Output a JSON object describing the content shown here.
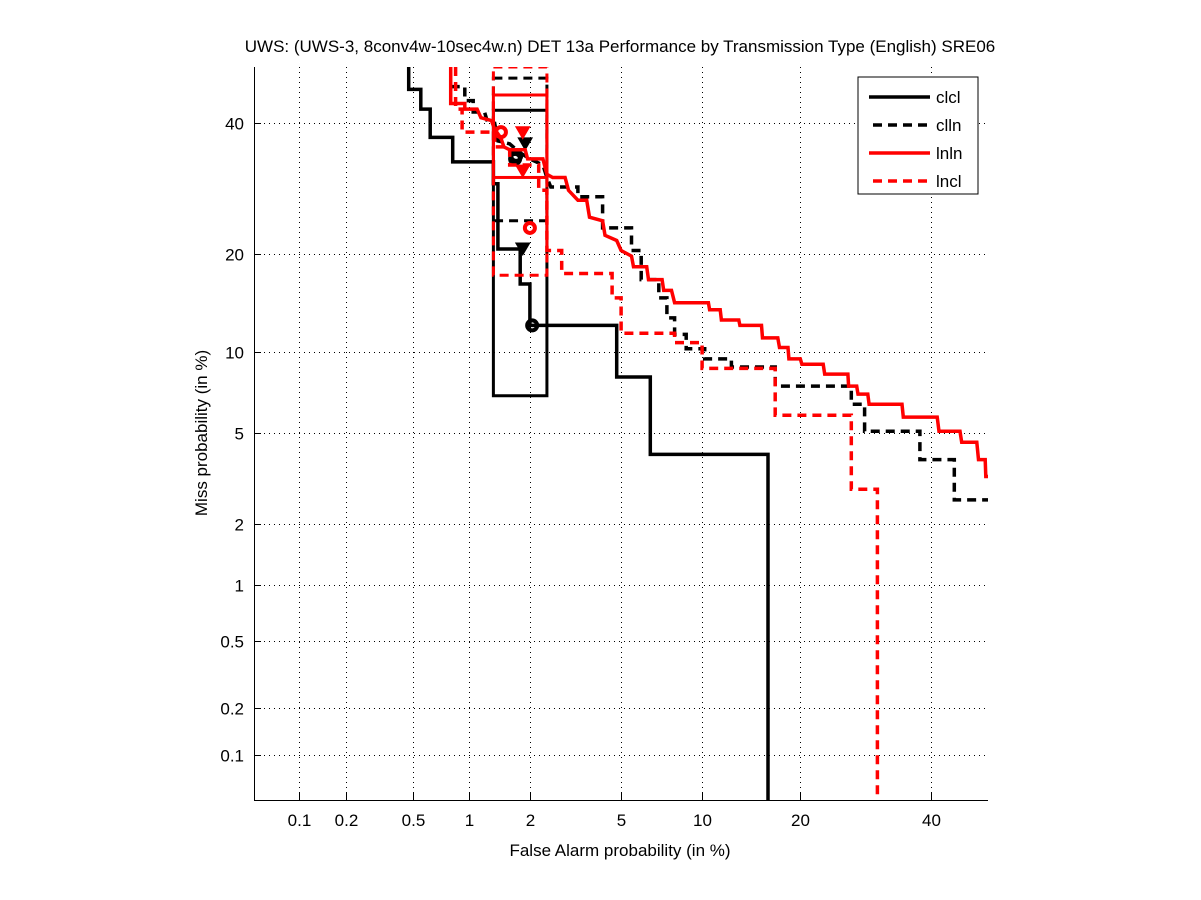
{
  "chart_data": {
    "type": "line",
    "title": "UWS: (UWS-3, 8conv4w-10sec4w.n) DET 13a Performance by Transmission Type (English) SRE06",
    "xlabel": "False Alarm probability (in %)",
    "ylabel": "Miss probability (in %)",
    "scale": "probit",
    "xlim": [
      0.05,
      50
    ],
    "ylim": [
      0.05,
      50
    ],
    "xticks": [
      0.1,
      0.2,
      0.5,
      1,
      2,
      5,
      10,
      20,
      40
    ],
    "xtick_labels": [
      "0.1",
      "0.2",
      "0.5",
      "1",
      "2",
      "5",
      "10",
      "20",
      "40"
    ],
    "yticks": [
      0.1,
      0.2,
      0.5,
      1,
      2,
      5,
      10,
      20,
      40
    ],
    "ytick_labels": [
      "0.1",
      "0.2",
      "0.5",
      "1",
      "2",
      "5",
      "10",
      "20",
      "40"
    ],
    "grid": true,
    "legend_position": "top-right",
    "series": [
      {
        "name": "clcl",
        "color": "#000000",
        "style": "solid",
        "points": [
          [
            0.47,
            50
          ],
          [
            0.47,
            46
          ],
          [
            0.55,
            46
          ],
          [
            0.55,
            42.5
          ],
          [
            0.62,
            42.5
          ],
          [
            0.62,
            37.6
          ],
          [
            0.82,
            37.6
          ],
          [
            0.82,
            33.5
          ],
          [
            1.33,
            33.5
          ],
          [
            1.33,
            30
          ],
          [
            1.4,
            30
          ],
          [
            1.4,
            20.7
          ],
          [
            1.8,
            20.7
          ],
          [
            1.8,
            16.5
          ],
          [
            2.0,
            16.5
          ],
          [
            2.0,
            12.3
          ],
          [
            4.8,
            12.3
          ],
          [
            4.8,
            8.2
          ],
          [
            6.5,
            8.2
          ],
          [
            6.5,
            4.1
          ],
          [
            16.2,
            4.1
          ],
          [
            16.2,
            0.05
          ]
        ],
        "box": {
          "x": [
            1.33,
            2.4
          ],
          "y": [
            7.0,
            42.3
          ]
        },
        "markers": [
          {
            "shape": "circle",
            "x": 2.05,
            "y": 12.3
          },
          {
            "shape": "circle",
            "x": 1.72,
            "y": 34.5
          },
          {
            "shape": "triangle",
            "x": 1.85,
            "y": 20.7
          }
        ]
      },
      {
        "name": "clln",
        "color": "#000000",
        "style": "dashed",
        "points": [
          [
            0.8,
            46.5
          ],
          [
            0.95,
            46.5
          ],
          [
            0.95,
            44
          ],
          [
            1.05,
            44
          ],
          [
            1.05,
            42
          ],
          [
            1.2,
            42
          ],
          [
            1.25,
            40
          ],
          [
            1.35,
            40
          ],
          [
            1.4,
            37
          ],
          [
            1.6,
            36.5
          ],
          [
            1.8,
            35
          ],
          [
            2.0,
            34
          ],
          [
            2.3,
            33
          ],
          [
            2.4,
            31
          ],
          [
            2.5,
            29.5
          ],
          [
            3.3,
            29.5
          ],
          [
            3.3,
            28
          ],
          [
            4.2,
            28
          ],
          [
            4.2,
            23.5
          ],
          [
            5.5,
            23.5
          ],
          [
            5.5,
            20.5
          ],
          [
            6.0,
            20.5
          ],
          [
            6.0,
            17
          ],
          [
            7.0,
            17
          ],
          [
            7.0,
            15
          ],
          [
            7.5,
            15
          ],
          [
            7.5,
            13
          ],
          [
            8.0,
            13
          ],
          [
            8.0,
            11.5
          ],
          [
            8.8,
            11.5
          ],
          [
            8.8,
            10.3
          ],
          [
            10.2,
            10.3
          ],
          [
            10.2,
            9.5
          ],
          [
            12.5,
            9.5
          ],
          [
            12.5,
            8.9
          ],
          [
            17,
            8.9
          ],
          [
            17,
            7.6
          ],
          [
            27,
            7.6
          ],
          [
            27,
            6.5
          ],
          [
            29,
            6.5
          ],
          [
            29,
            5.1
          ],
          [
            38,
            5.1
          ],
          [
            38,
            3.9
          ],
          [
            44,
            3.9
          ],
          [
            44,
            2.6
          ],
          [
            50,
            2.6
          ]
        ],
        "box": {
          "x": [
            1.33,
            2.4
          ],
          "y": [
            24.5,
            48
          ]
        },
        "markers": [
          {
            "shape": "triangle",
            "x": 1.9,
            "y": 36.5
          },
          {
            "shape": "circle",
            "x": 1.7,
            "y": 34
          }
        ]
      },
      {
        "name": "lnln",
        "color": "#ff0000",
        "style": "solid",
        "points": [
          [
            0.8,
            50
          ],
          [
            0.8,
            43.5
          ],
          [
            0.95,
            43.5
          ],
          [
            0.95,
            42.5
          ],
          [
            1.1,
            42.5
          ],
          [
            1.15,
            41
          ],
          [
            1.3,
            40.5
          ],
          [
            1.35,
            39
          ],
          [
            1.45,
            37.5
          ],
          [
            1.5,
            36
          ],
          [
            1.6,
            35.5
          ],
          [
            1.9,
            35.5
          ],
          [
            1.95,
            34
          ],
          [
            2.3,
            34
          ],
          [
            2.4,
            31.5
          ],
          [
            2.55,
            31
          ],
          [
            2.9,
            31
          ],
          [
            3.0,
            29
          ],
          [
            3.3,
            27.5
          ],
          [
            3.6,
            27.5
          ],
          [
            3.7,
            25
          ],
          [
            4.2,
            24.5
          ],
          [
            4.3,
            22.5
          ],
          [
            4.8,
            21.8
          ],
          [
            5.0,
            20.5
          ],
          [
            5.5,
            19.8
          ],
          [
            5.6,
            18.5
          ],
          [
            6.3,
            18.5
          ],
          [
            6.4,
            17
          ],
          [
            7.2,
            17
          ],
          [
            7.3,
            15.8
          ],
          [
            7.8,
            15.8
          ],
          [
            8.0,
            14.5
          ],
          [
            10.5,
            14.5
          ],
          [
            10.6,
            13.8
          ],
          [
            11.5,
            13.8
          ],
          [
            11.6,
            12.8
          ],
          [
            13.2,
            12.8
          ],
          [
            13.3,
            12.3
          ],
          [
            15.5,
            12.3
          ],
          [
            15.6,
            11.2
          ],
          [
            17.3,
            11.2
          ],
          [
            17.5,
            10.4
          ],
          [
            18.5,
            10.4
          ],
          [
            18.6,
            9.5
          ],
          [
            20,
            9.5
          ],
          [
            20.2,
            9.1
          ],
          [
            23,
            9.1
          ],
          [
            23.2,
            8.4
          ],
          [
            26.5,
            8.4
          ],
          [
            26.6,
            7.6
          ],
          [
            27.8,
            7.6
          ],
          [
            28,
            7.1
          ],
          [
            29.5,
            7.1
          ],
          [
            29.7,
            6.5
          ],
          [
            35,
            6.5
          ],
          [
            35.2,
            5.8
          ],
          [
            41,
            5.8
          ],
          [
            41.3,
            5.1
          ],
          [
            45,
            5.1
          ],
          [
            45.3,
            4.6
          ],
          [
            48,
            4.6
          ],
          [
            48.3,
            3.9
          ],
          [
            49.5,
            3.9
          ],
          [
            49.6,
            3.3
          ],
          [
            50,
            3.3
          ]
        ],
        "box": {
          "x": [
            1.33,
            2.4
          ],
          "y": [
            31,
            45
          ]
        },
        "markers": [
          {
            "shape": "circle",
            "x": 1.45,
            "y": 38.5
          },
          {
            "shape": "triangle",
            "x": 1.85,
            "y": 38.4
          }
        ]
      },
      {
        "name": "lncl",
        "color": "#ff0000",
        "style": "dashed",
        "points": [
          [
            0.85,
            50
          ],
          [
            0.85,
            42.5
          ],
          [
            0.92,
            42.5
          ],
          [
            0.92,
            38.5
          ],
          [
            1.35,
            38.5
          ],
          [
            1.35,
            36
          ],
          [
            1.6,
            36
          ],
          [
            1.6,
            33
          ],
          [
            2.2,
            33
          ],
          [
            2.2,
            29
          ],
          [
            2.4,
            29
          ],
          [
            2.4,
            20.5
          ],
          [
            2.8,
            20.5
          ],
          [
            2.8,
            17.7
          ],
          [
            4.6,
            17.7
          ],
          [
            4.6,
            15
          ],
          [
            5.0,
            15
          ],
          [
            5.0,
            11.6
          ],
          [
            8.0,
            11.6
          ],
          [
            8.0,
            10.8
          ],
          [
            10.0,
            10.8
          ],
          [
            10.0,
            8.8
          ],
          [
            17,
            8.8
          ],
          [
            17,
            5.9
          ],
          [
            27,
            5.9
          ],
          [
            27,
            2.9
          ],
          [
            31,
            2.9
          ],
          [
            31,
            0.05
          ]
        ],
        "box": {
          "x": [
            1.33,
            2.4
          ],
          "y": [
            17.5,
            50
          ]
        },
        "markers": [
          {
            "shape": "circle",
            "x": 2.0,
            "y": 23.5
          },
          {
            "shape": "triangle",
            "x": 1.85,
            "y": 32
          }
        ]
      }
    ]
  }
}
